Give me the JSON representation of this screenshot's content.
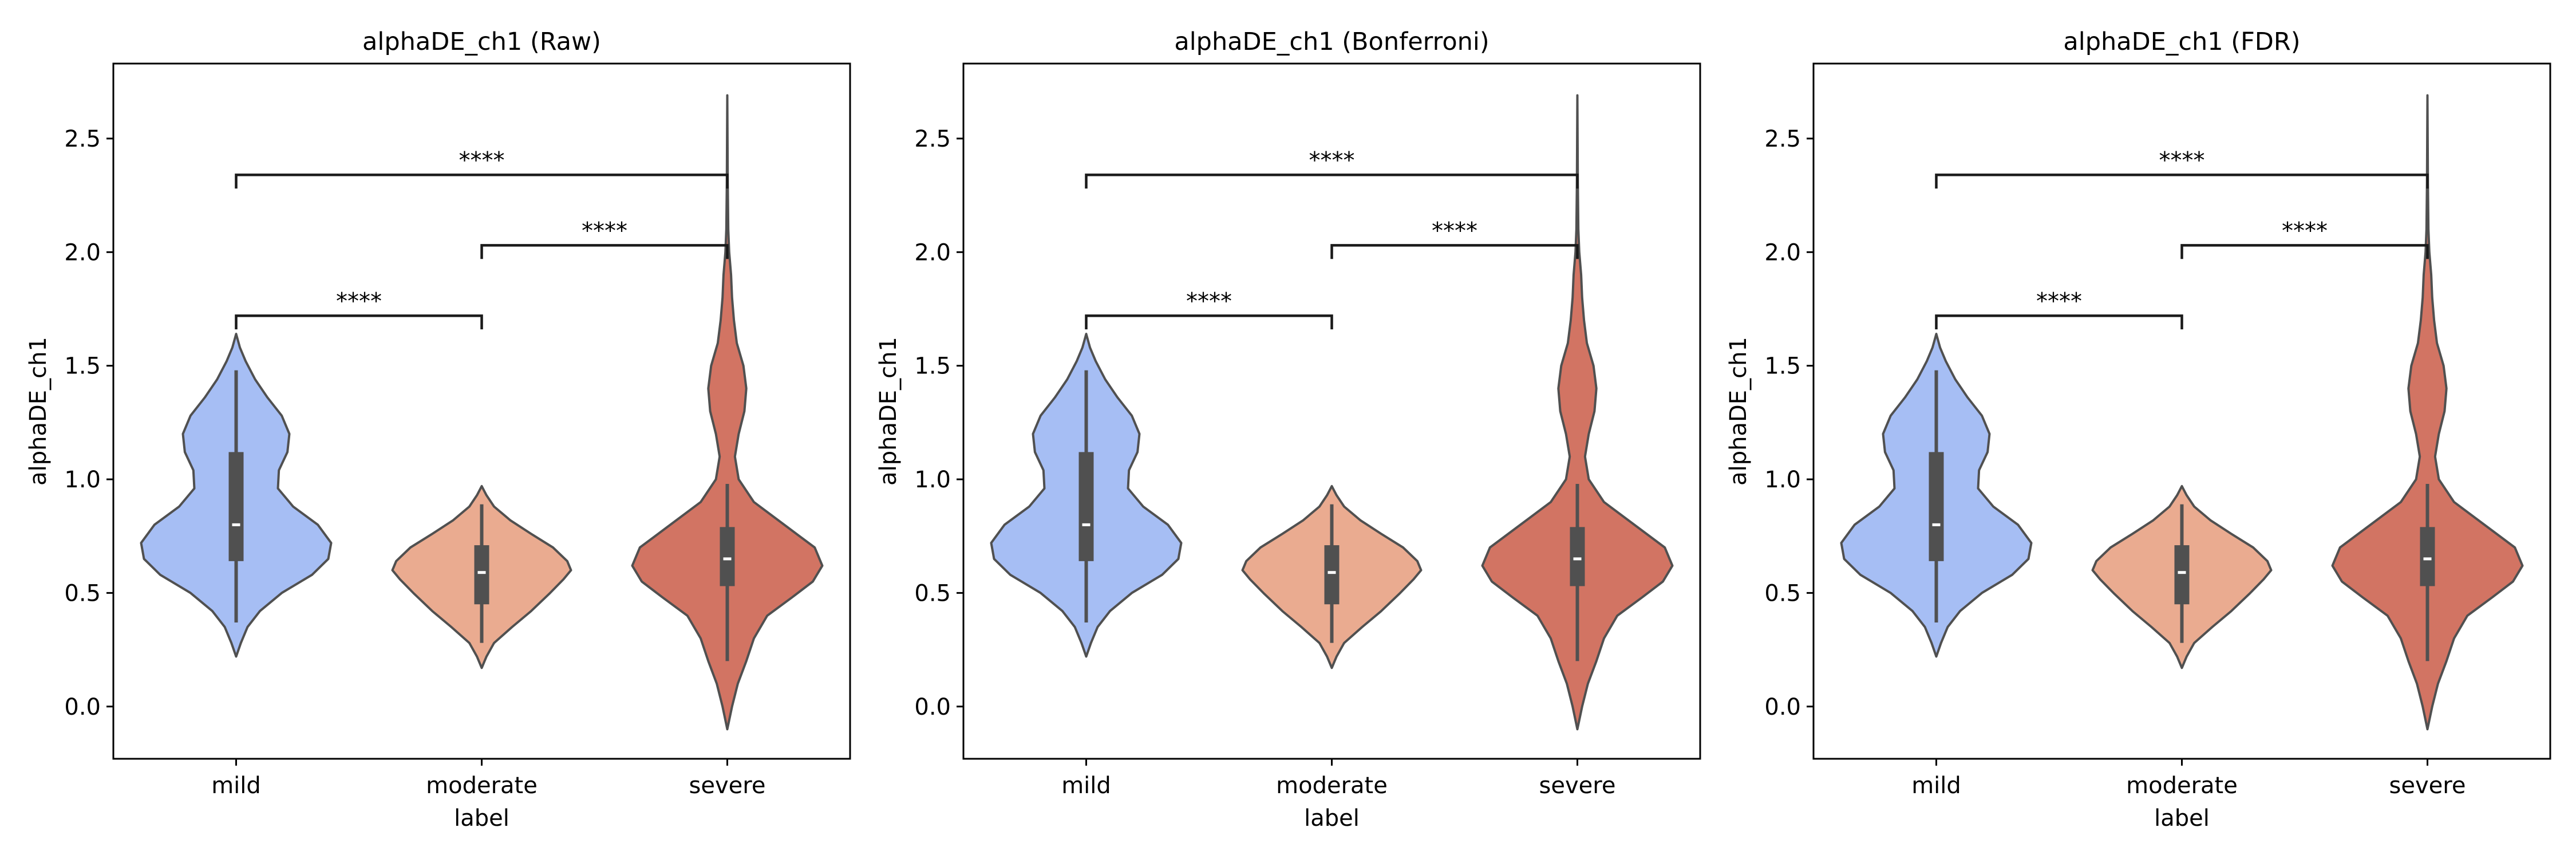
{
  "colors": {
    "mild": "#a6bef4",
    "moderate": "#eaab90",
    "severe": "#d27463",
    "outline": "#505050",
    "box": "#505050",
    "median": "#ffffff",
    "bracket": "#1a1a1a"
  },
  "chart_data": [
    {
      "type": "violin",
      "title": "alphaDE_ch1 (Raw)",
      "xlabel": "label",
      "ylabel": "alphaDE_ch1",
      "categories": [
        "mild",
        "moderate",
        "severe"
      ],
      "ylim": [
        -0.23,
        2.83
      ],
      "yticks": [
        "0.0",
        "0.5",
        "1.0",
        "1.5",
        "2.0",
        "2.5"
      ],
      "grid": false,
      "violins": [
        {
          "category": "mild",
          "color_key": "mild",
          "box": {
            "whisker_low": 0.37,
            "q1": 0.64,
            "median": 0.8,
            "q3": 1.12,
            "whisker_high": 1.48
          },
          "density": [
            [
              0.22,
              0.0
            ],
            [
              0.28,
              0.05
            ],
            [
              0.35,
              0.12
            ],
            [
              0.42,
              0.25
            ],
            [
              0.5,
              0.48
            ],
            [
              0.58,
              0.8
            ],
            [
              0.65,
              0.97
            ],
            [
              0.72,
              1.0
            ],
            [
              0.8,
              0.86
            ],
            [
              0.88,
              0.6
            ],
            [
              0.96,
              0.44
            ],
            [
              1.04,
              0.45
            ],
            [
              1.12,
              0.54
            ],
            [
              1.2,
              0.56
            ],
            [
              1.28,
              0.48
            ],
            [
              1.36,
              0.33
            ],
            [
              1.44,
              0.2
            ],
            [
              1.52,
              0.1
            ],
            [
              1.58,
              0.04
            ],
            [
              1.64,
              0.0
            ]
          ]
        },
        {
          "category": "moderate",
          "color_key": "moderate",
          "box": {
            "whisker_low": 0.28,
            "q1": 0.45,
            "median": 0.59,
            "q3": 0.71,
            "whisker_high": 0.89
          },
          "density": [
            [
              0.17,
              0.0
            ],
            [
              0.22,
              0.05
            ],
            [
              0.28,
              0.13
            ],
            [
              0.35,
              0.32
            ],
            [
              0.42,
              0.52
            ],
            [
              0.5,
              0.72
            ],
            [
              0.56,
              0.86
            ],
            [
              0.6,
              0.94
            ],
            [
              0.64,
              0.9
            ],
            [
              0.7,
              0.75
            ],
            [
              0.76,
              0.52
            ],
            [
              0.82,
              0.3
            ],
            [
              0.88,
              0.13
            ],
            [
              0.93,
              0.05
            ],
            [
              0.97,
              0.0
            ]
          ]
        },
        {
          "category": "severe",
          "color_key": "severe",
          "box": {
            "whisker_low": 0.2,
            "q1": 0.53,
            "median": 0.65,
            "q3": 0.79,
            "whisker_high": 0.98
          },
          "density": [
            [
              -0.1,
              0.0
            ],
            [
              0.0,
              0.05
            ],
            [
              0.1,
              0.11
            ],
            [
              0.2,
              0.2
            ],
            [
              0.3,
              0.28
            ],
            [
              0.4,
              0.42
            ],
            [
              0.48,
              0.68
            ],
            [
              0.55,
              0.9
            ],
            [
              0.62,
              1.0
            ],
            [
              0.7,
              0.92
            ],
            [
              0.8,
              0.6
            ],
            [
              0.9,
              0.28
            ],
            [
              1.0,
              0.12
            ],
            [
              1.1,
              0.08
            ],
            [
              1.2,
              0.12
            ],
            [
              1.3,
              0.18
            ],
            [
              1.4,
              0.2
            ],
            [
              1.5,
              0.17
            ],
            [
              1.6,
              0.1
            ],
            [
              1.7,
              0.07
            ],
            [
              1.8,
              0.05
            ],
            [
              1.9,
              0.04
            ],
            [
              2.0,
              0.02
            ],
            [
              2.1,
              0.01
            ],
            [
              2.3,
              0.005
            ],
            [
              2.69,
              0.0
            ]
          ]
        }
      ],
      "annotations": [
        {
          "from": "mild",
          "to": "moderate",
          "text": "****",
          "y": 1.72,
          "drop": 0.06
        },
        {
          "from": "moderate",
          "to": "severe",
          "text": "****",
          "y": 2.03,
          "drop": 0.06
        },
        {
          "from": "mild",
          "to": "severe",
          "text": "****",
          "y": 2.34,
          "drop": 0.06
        }
      ]
    },
    {
      "type": "violin",
      "title": "alphaDE_ch1 (Bonferroni)",
      "xlabel": "label",
      "ylabel": "alphaDE_ch1",
      "categories": [
        "mild",
        "moderate",
        "severe"
      ],
      "ylim": [
        -0.23,
        2.83
      ],
      "yticks": [
        "0.0",
        "0.5",
        "1.0",
        "1.5",
        "2.0",
        "2.5"
      ],
      "grid": false,
      "violins": [
        {
          "category": "mild",
          "color_key": "mild",
          "box": {
            "whisker_low": 0.37,
            "q1": 0.64,
            "median": 0.8,
            "q3": 1.12,
            "whisker_high": 1.48
          },
          "density": [
            [
              0.22,
              0.0
            ],
            [
              0.28,
              0.05
            ],
            [
              0.35,
              0.12
            ],
            [
              0.42,
              0.25
            ],
            [
              0.5,
              0.48
            ],
            [
              0.58,
              0.8
            ],
            [
              0.65,
              0.97
            ],
            [
              0.72,
              1.0
            ],
            [
              0.8,
              0.86
            ],
            [
              0.88,
              0.6
            ],
            [
              0.96,
              0.44
            ],
            [
              1.04,
              0.45
            ],
            [
              1.12,
              0.54
            ],
            [
              1.2,
              0.56
            ],
            [
              1.28,
              0.48
            ],
            [
              1.36,
              0.33
            ],
            [
              1.44,
              0.2
            ],
            [
              1.52,
              0.1
            ],
            [
              1.58,
              0.04
            ],
            [
              1.64,
              0.0
            ]
          ]
        },
        {
          "category": "moderate",
          "color_key": "moderate",
          "box": {
            "whisker_low": 0.28,
            "q1": 0.45,
            "median": 0.59,
            "q3": 0.71,
            "whisker_high": 0.89
          },
          "density": [
            [
              0.17,
              0.0
            ],
            [
              0.22,
              0.05
            ],
            [
              0.28,
              0.13
            ],
            [
              0.35,
              0.32
            ],
            [
              0.42,
              0.52
            ],
            [
              0.5,
              0.72
            ],
            [
              0.56,
              0.86
            ],
            [
              0.6,
              0.94
            ],
            [
              0.64,
              0.9
            ],
            [
              0.7,
              0.75
            ],
            [
              0.76,
              0.52
            ],
            [
              0.82,
              0.3
            ],
            [
              0.88,
              0.13
            ],
            [
              0.93,
              0.05
            ],
            [
              0.97,
              0.0
            ]
          ]
        },
        {
          "category": "severe",
          "color_key": "severe",
          "box": {
            "whisker_low": 0.2,
            "q1": 0.53,
            "median": 0.65,
            "q3": 0.79,
            "whisker_high": 0.98
          },
          "density": [
            [
              -0.1,
              0.0
            ],
            [
              0.0,
              0.05
            ],
            [
              0.1,
              0.11
            ],
            [
              0.2,
              0.2
            ],
            [
              0.3,
              0.28
            ],
            [
              0.4,
              0.42
            ],
            [
              0.48,
              0.68
            ],
            [
              0.55,
              0.9
            ],
            [
              0.62,
              1.0
            ],
            [
              0.7,
              0.92
            ],
            [
              0.8,
              0.6
            ],
            [
              0.9,
              0.28
            ],
            [
              1.0,
              0.12
            ],
            [
              1.1,
              0.08
            ],
            [
              1.2,
              0.12
            ],
            [
              1.3,
              0.18
            ],
            [
              1.4,
              0.2
            ],
            [
              1.5,
              0.17
            ],
            [
              1.6,
              0.1
            ],
            [
              1.7,
              0.07
            ],
            [
              1.8,
              0.05
            ],
            [
              1.9,
              0.04
            ],
            [
              2.0,
              0.02
            ],
            [
              2.1,
              0.01
            ],
            [
              2.3,
              0.005
            ],
            [
              2.69,
              0.0
            ]
          ]
        }
      ],
      "annotations": [
        {
          "from": "mild",
          "to": "moderate",
          "text": "****",
          "y": 1.72,
          "drop": 0.06
        },
        {
          "from": "moderate",
          "to": "severe",
          "text": "****",
          "y": 2.03,
          "drop": 0.06
        },
        {
          "from": "mild",
          "to": "severe",
          "text": "****",
          "y": 2.34,
          "drop": 0.06
        }
      ]
    },
    {
      "type": "violin",
      "title": "alphaDE_ch1 (FDR)",
      "xlabel": "label",
      "ylabel": "alphaDE_ch1",
      "categories": [
        "mild",
        "moderate",
        "severe"
      ],
      "ylim": [
        -0.23,
        2.83
      ],
      "yticks": [
        "0.0",
        "0.5",
        "1.0",
        "1.5",
        "2.0",
        "2.5"
      ],
      "grid": false,
      "violins": [
        {
          "category": "mild",
          "color_key": "mild",
          "box": {
            "whisker_low": 0.37,
            "q1": 0.64,
            "median": 0.8,
            "q3": 1.12,
            "whisker_high": 1.48
          },
          "density": [
            [
              0.22,
              0.0
            ],
            [
              0.28,
              0.05
            ],
            [
              0.35,
              0.12
            ],
            [
              0.42,
              0.25
            ],
            [
              0.5,
              0.48
            ],
            [
              0.58,
              0.8
            ],
            [
              0.65,
              0.97
            ],
            [
              0.72,
              1.0
            ],
            [
              0.8,
              0.86
            ],
            [
              0.88,
              0.6
            ],
            [
              0.96,
              0.44
            ],
            [
              1.04,
              0.45
            ],
            [
              1.12,
              0.54
            ],
            [
              1.2,
              0.56
            ],
            [
              1.28,
              0.48
            ],
            [
              1.36,
              0.33
            ],
            [
              1.44,
              0.2
            ],
            [
              1.52,
              0.1
            ],
            [
              1.58,
              0.04
            ],
            [
              1.64,
              0.0
            ]
          ]
        },
        {
          "category": "moderate",
          "color_key": "moderate",
          "box": {
            "whisker_low": 0.28,
            "q1": 0.45,
            "median": 0.59,
            "q3": 0.71,
            "whisker_high": 0.89
          },
          "density": [
            [
              0.17,
              0.0
            ],
            [
              0.22,
              0.05
            ],
            [
              0.28,
              0.13
            ],
            [
              0.35,
              0.32
            ],
            [
              0.42,
              0.52
            ],
            [
              0.5,
              0.72
            ],
            [
              0.56,
              0.86
            ],
            [
              0.6,
              0.94
            ],
            [
              0.64,
              0.9
            ],
            [
              0.7,
              0.75
            ],
            [
              0.76,
              0.52
            ],
            [
              0.82,
              0.3
            ],
            [
              0.88,
              0.13
            ],
            [
              0.93,
              0.05
            ],
            [
              0.97,
              0.0
            ]
          ]
        },
        {
          "category": "severe",
          "color_key": "severe",
          "box": {
            "whisker_low": 0.2,
            "q1": 0.53,
            "median": 0.65,
            "q3": 0.79,
            "whisker_high": 0.98
          },
          "density": [
            [
              -0.1,
              0.0
            ],
            [
              0.0,
              0.05
            ],
            [
              0.1,
              0.11
            ],
            [
              0.2,
              0.2
            ],
            [
              0.3,
              0.28
            ],
            [
              0.4,
              0.42
            ],
            [
              0.48,
              0.68
            ],
            [
              0.55,
              0.9
            ],
            [
              0.62,
              1.0
            ],
            [
              0.7,
              0.92
            ],
            [
              0.8,
              0.6
            ],
            [
              0.9,
              0.28
            ],
            [
              1.0,
              0.12
            ],
            [
              1.1,
              0.08
            ],
            [
              1.2,
              0.12
            ],
            [
              1.3,
              0.18
            ],
            [
              1.4,
              0.2
            ],
            [
              1.5,
              0.17
            ],
            [
              1.6,
              0.1
            ],
            [
              1.7,
              0.07
            ],
            [
              1.8,
              0.05
            ],
            [
              1.9,
              0.04
            ],
            [
              2.0,
              0.02
            ],
            [
              2.1,
              0.01
            ],
            [
              2.3,
              0.005
            ],
            [
              2.69,
              0.0
            ]
          ]
        }
      ],
      "annotations": [
        {
          "from": "mild",
          "to": "moderate",
          "text": "****",
          "y": 1.72,
          "drop": 0.06
        },
        {
          "from": "moderate",
          "to": "severe",
          "text": "****",
          "y": 2.03,
          "drop": 0.06
        },
        {
          "from": "mild",
          "to": "severe",
          "text": "****",
          "y": 2.34,
          "drop": 0.06
        }
      ]
    }
  ]
}
